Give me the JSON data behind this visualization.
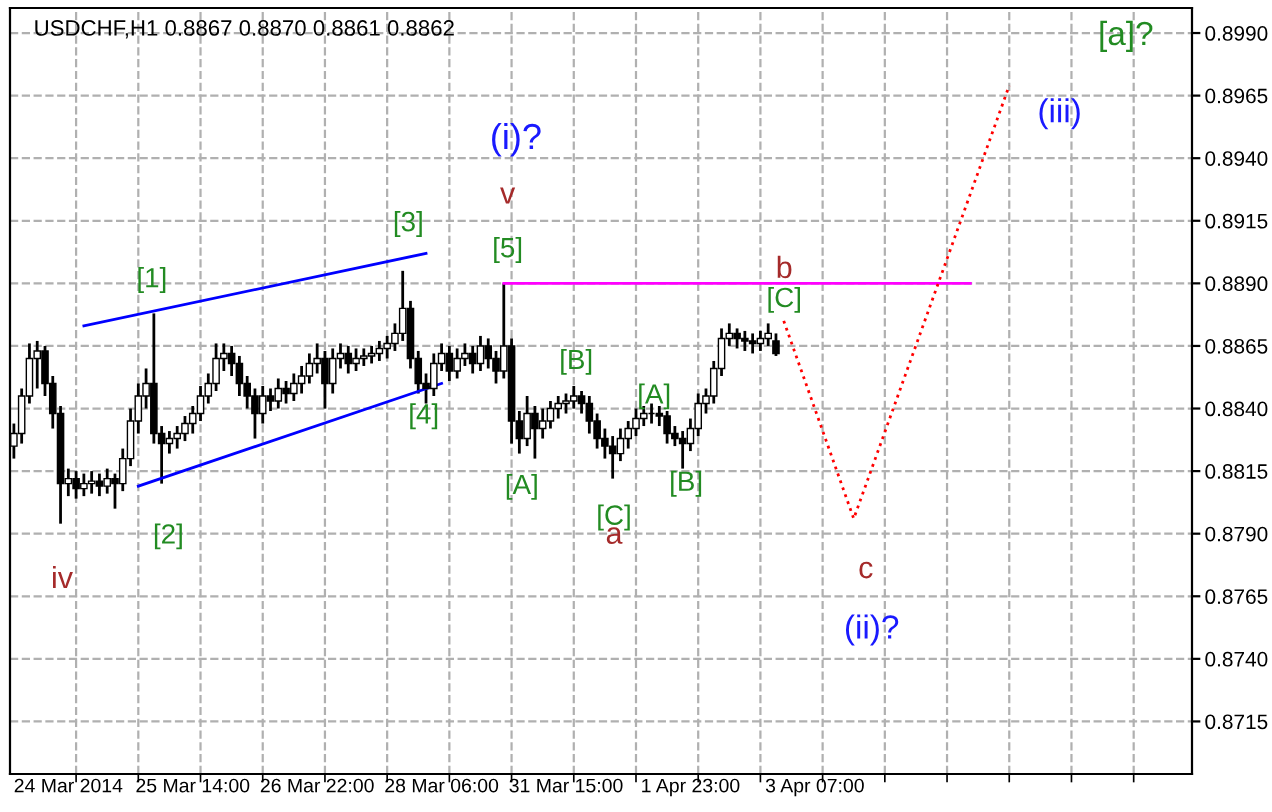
{
  "chart_data": {
    "type": "candlestick",
    "title": "USDCHF,H1 0.8867 0.8870 0.8861 0.8862",
    "color": "#000000",
    "categories": [
      null,
      null,
      null,
      null,
      null,
      null,
      null,
      "24 Mar 2014",
      null,
      null,
      null,
      null,
      null,
      null,
      null,
      null,
      null,
      null,
      null,
      null,
      null,
      null,
      null,
      "25 Mar 14:00",
      null,
      null,
      null,
      null,
      null,
      null,
      null,
      null,
      null,
      null,
      null,
      null,
      null,
      null,
      null,
      "26 Mar 22:00",
      null,
      null,
      null,
      null,
      null,
      null,
      null,
      null,
      null,
      null,
      null,
      null,
      null,
      null,
      null,
      "28 Mar 06:00",
      null,
      null,
      null,
      null,
      null,
      null,
      null,
      null,
      null,
      null,
      null,
      null,
      null,
      null,
      null,
      "31 Mar 15:00",
      null,
      null,
      null,
      null,
      null,
      null,
      null,
      null,
      null,
      null,
      null,
      null,
      null,
      null,
      null,
      "1 Apr 23:00",
      null,
      null,
      null,
      null,
      null,
      null,
      null,
      null,
      null,
      null,
      null,
      null,
      null,
      null,
      null,
      "3 Apr 07:00",
      null,
      null,
      null,
      null,
      null,
      null,
      null,
      null,
      null,
      null,
      null,
      null,
      null,
      null,
      null,
      null,
      null,
      null,
      null,
      null,
      null,
      null,
      null,
      null,
      null,
      null,
      null,
      null,
      null,
      null,
      null,
      null,
      null,
      null,
      null,
      null,
      null,
      null,
      null,
      null,
      null,
      null,
      null,
      null,
      null,
      null,
      null,
      null
    ],
    "ohlc": [
      [
        0.8825,
        0.8834,
        0.882,
        0.883
      ],
      [
        0.883,
        0.8848,
        0.8826,
        0.8845
      ],
      [
        0.8845,
        0.8866,
        0.8842,
        0.886
      ],
      [
        0.886,
        0.8867,
        0.8848,
        0.8863
      ],
      [
        0.8863,
        0.8865,
        0.8845,
        0.885
      ],
      [
        0.885,
        0.8853,
        0.8832,
        0.8838
      ],
      [
        0.8838,
        0.8841,
        0.8794,
        0.881
      ],
      [
        0.881,
        0.8816,
        0.8805,
        0.8812
      ],
      [
        0.8812,
        0.8815,
        0.8804,
        0.8808
      ],
      [
        0.8808,
        0.8814,
        0.8805,
        0.881
      ],
      [
        0.881,
        0.8815,
        0.8806,
        0.8811
      ],
      [
        0.8811,
        0.8814,
        0.8805,
        0.8809
      ],
      [
        0.8809,
        0.8816,
        0.8806,
        0.8812
      ],
      [
        0.8812,
        0.8814,
        0.88,
        0.881
      ],
      [
        0.881,
        0.8824,
        0.8807,
        0.882
      ],
      [
        0.882,
        0.884,
        0.8817,
        0.8835
      ],
      [
        0.8835,
        0.885,
        0.883,
        0.8845
      ],
      [
        0.8845,
        0.8856,
        0.884,
        0.885
      ],
      [
        0.885,
        0.8878,
        0.8826,
        0.883
      ],
      [
        0.883,
        0.8833,
        0.881,
        0.8826
      ],
      [
        0.8826,
        0.8831,
        0.8822,
        0.8828
      ],
      [
        0.8828,
        0.8833,
        0.8824,
        0.883
      ],
      [
        0.883,
        0.8837,
        0.8827,
        0.8834
      ],
      [
        0.8834,
        0.8841,
        0.883,
        0.8838
      ],
      [
        0.8838,
        0.8849,
        0.8835,
        0.8845
      ],
      [
        0.8845,
        0.8854,
        0.8842,
        0.885
      ],
      [
        0.885,
        0.8866,
        0.8847,
        0.886
      ],
      [
        0.886,
        0.8866,
        0.8855,
        0.8862
      ],
      [
        0.8862,
        0.8865,
        0.8853,
        0.8858
      ],
      [
        0.8858,
        0.8861,
        0.8845,
        0.885
      ],
      [
        0.885,
        0.8853,
        0.884,
        0.8845
      ],
      [
        0.8845,
        0.8848,
        0.8828,
        0.8838
      ],
      [
        0.8838,
        0.8849,
        0.8834,
        0.8845
      ],
      [
        0.8845,
        0.8848,
        0.8839,
        0.8843
      ],
      [
        0.8843,
        0.8852,
        0.884,
        0.8848
      ],
      [
        0.8848,
        0.8851,
        0.8842,
        0.8846
      ],
      [
        0.8846,
        0.8854,
        0.8843,
        0.885
      ],
      [
        0.885,
        0.8857,
        0.8846,
        0.8853
      ],
      [
        0.8853,
        0.8862,
        0.885,
        0.8858
      ],
      [
        0.8858,
        0.8866,
        0.8854,
        0.886
      ],
      [
        0.886,
        0.8863,
        0.884,
        0.885
      ],
      [
        0.885,
        0.8864,
        0.8846,
        0.886
      ],
      [
        0.886,
        0.8866,
        0.8856,
        0.8862
      ],
      [
        0.8862,
        0.8865,
        0.8854,
        0.8858
      ],
      [
        0.8858,
        0.8864,
        0.8855,
        0.886
      ],
      [
        0.886,
        0.8864,
        0.8857,
        0.8861
      ],
      [
        0.8861,
        0.8865,
        0.8858,
        0.8862
      ],
      [
        0.8862,
        0.8867,
        0.8859,
        0.8864
      ],
      [
        0.8864,
        0.8869,
        0.886,
        0.8866
      ],
      [
        0.8866,
        0.8874,
        0.8863,
        0.887
      ],
      [
        0.887,
        0.8895,
        0.8867,
        0.888
      ],
      [
        0.888,
        0.8883,
        0.8856,
        0.886
      ],
      [
        0.886,
        0.8863,
        0.8846,
        0.885
      ],
      [
        0.885,
        0.8854,
        0.8842,
        0.8848
      ],
      [
        0.8848,
        0.8862,
        0.8845,
        0.8858
      ],
      [
        0.8858,
        0.8866,
        0.8855,
        0.8862
      ],
      [
        0.8862,
        0.8865,
        0.8851,
        0.8855
      ],
      [
        0.8855,
        0.8864,
        0.8852,
        0.886
      ],
      [
        0.886,
        0.8866,
        0.8857,
        0.8862
      ],
      [
        0.8862,
        0.8865,
        0.8854,
        0.8858
      ],
      [
        0.8858,
        0.8869,
        0.8855,
        0.8865
      ],
      [
        0.8865,
        0.8868,
        0.8856,
        0.886
      ],
      [
        0.886,
        0.8863,
        0.885,
        0.8855
      ],
      [
        0.8855,
        0.889,
        0.8852,
        0.8865
      ],
      [
        0.8865,
        0.8868,
        0.8826,
        0.8835
      ],
      [
        0.8835,
        0.8839,
        0.8822,
        0.8828
      ],
      [
        0.8828,
        0.8845,
        0.8825,
        0.8838
      ],
      [
        0.8838,
        0.8841,
        0.882,
        0.8832
      ],
      [
        0.8832,
        0.884,
        0.8828,
        0.8835
      ],
      [
        0.8835,
        0.8843,
        0.8832,
        0.884
      ],
      [
        0.884,
        0.8845,
        0.8836,
        0.8842
      ],
      [
        0.8842,
        0.8846,
        0.8838,
        0.8843
      ],
      [
        0.8843,
        0.8849,
        0.884,
        0.8845
      ],
      [
        0.8845,
        0.8847,
        0.8838,
        0.8842
      ],
      [
        0.8842,
        0.8845,
        0.883,
        0.8835
      ],
      [
        0.8835,
        0.8838,
        0.8824,
        0.8828
      ],
      [
        0.8828,
        0.8832,
        0.882,
        0.8825
      ],
      [
        0.8825,
        0.8829,
        0.8812,
        0.8822
      ],
      [
        0.8822,
        0.8832,
        0.8819,
        0.8828
      ],
      [
        0.8828,
        0.8835,
        0.8824,
        0.8832
      ],
      [
        0.8832,
        0.884,
        0.8829,
        0.8836
      ],
      [
        0.8836,
        0.8841,
        0.8833,
        0.8838
      ],
      [
        0.8838,
        0.8842,
        0.8834,
        0.8838
      ],
      [
        0.8838,
        0.8841,
        0.8833,
        0.8837
      ],
      [
        0.8837,
        0.8839,
        0.8826,
        0.883
      ],
      [
        0.883,
        0.8833,
        0.8825,
        0.8828
      ],
      [
        0.8828,
        0.8831,
        0.8816,
        0.8826
      ],
      [
        0.8826,
        0.8836,
        0.8823,
        0.8832
      ],
      [
        0.8832,
        0.8846,
        0.8829,
        0.8842
      ],
      [
        0.8842,
        0.8848,
        0.8838,
        0.8845
      ],
      [
        0.8845,
        0.8859,
        0.8842,
        0.8856
      ],
      [
        0.8856,
        0.8872,
        0.8853,
        0.8868
      ],
      [
        0.8868,
        0.8874,
        0.8865,
        0.887
      ],
      [
        0.887,
        0.8872,
        0.8864,
        0.8868
      ],
      [
        0.8868,
        0.8871,
        0.8863,
        0.8867
      ],
      [
        0.8867,
        0.887,
        0.8862,
        0.8866
      ],
      [
        0.8866,
        0.8871,
        0.8863,
        0.8868
      ],
      [
        0.8868,
        0.8874,
        0.8865,
        0.887
      ],
      [
        0.8867,
        0.887,
        0.8861,
        0.8862
      ],
      null,
      null,
      null,
      null,
      null,
      null,
      null,
      null,
      null,
      null,
      null,
      null,
      null,
      null,
      null,
      null,
      null,
      null,
      null,
      null,
      null,
      null,
      null,
      null,
      null,
      null,
      null,
      null,
      null,
      null,
      null,
      null,
      null,
      null,
      null,
      null,
      null,
      null,
      null,
      null,
      null,
      null,
      null,
      null,
      null,
      null,
      null,
      null,
      null,
      null,
      null,
      null,
      null
    ],
    "series": [
      {
        "type": "line",
        "color": "#0000ff",
        "line_style": "solid",
        "values": [
          null,
          null,
          null,
          null,
          null,
          null,
          null,
          null,
          null,
          0.8873,
          null,
          null,
          null,
          null,
          null,
          null,
          null,
          null,
          null,
          null,
          null,
          null,
          null,
          null,
          null,
          null,
          null,
          null,
          null,
          null,
          null,
          null,
          null,
          null,
          null,
          null,
          null,
          null,
          null,
          null,
          null,
          null,
          null,
          null,
          null,
          null,
          null,
          null,
          null,
          null,
          null,
          null,
          null,
          0.8902,
          null,
          null,
          null,
          null,
          null,
          null,
          null,
          null,
          null,
          null,
          null,
          null,
          null,
          null,
          null,
          null,
          null,
          null,
          null,
          null,
          null,
          null,
          null,
          null,
          null,
          null,
          null,
          null,
          null,
          null,
          null,
          null,
          null,
          null,
          null,
          null,
          null,
          null,
          null,
          null,
          null,
          null,
          null,
          null,
          null,
          null,
          null,
          null,
          null,
          null,
          null,
          null,
          null,
          null,
          null,
          null,
          null,
          null,
          null,
          null,
          null,
          null,
          null,
          null,
          null,
          null,
          null,
          null,
          null,
          null,
          null,
          null,
          null,
          null,
          null,
          null,
          null,
          null,
          null,
          null,
          null,
          null,
          null,
          null,
          null,
          null,
          null,
          null,
          null,
          null,
          null,
          null,
          null,
          null,
          null,
          null,
          null,
          null
        ]
      },
      {
        "type": "line",
        "color": "#0000ff",
        "line_style": "solid",
        "values": [
          null,
          null,
          null,
          null,
          null,
          null,
          null,
          null,
          null,
          null,
          null,
          null,
          null,
          null,
          null,
          null,
          0.8809,
          null,
          null,
          null,
          null,
          null,
          null,
          null,
          null,
          null,
          null,
          null,
          null,
          null,
          null,
          null,
          null,
          null,
          null,
          null,
          null,
          null,
          null,
          null,
          null,
          null,
          null,
          null,
          null,
          null,
          null,
          null,
          null,
          null,
          null,
          null,
          null,
          null,
          null,
          0.885,
          null,
          null,
          null,
          null,
          null,
          null,
          null,
          null,
          null,
          null,
          null,
          null,
          null,
          null,
          null,
          null,
          null,
          null,
          null,
          null,
          null,
          null,
          null,
          null,
          null,
          null,
          null,
          null,
          null,
          null,
          null,
          null,
          null,
          null,
          null,
          null,
          null,
          null,
          null,
          null,
          null,
          null,
          null,
          null,
          null,
          null,
          null,
          null,
          null,
          null,
          null,
          null,
          null,
          null,
          null,
          null,
          null,
          null,
          null,
          null,
          null,
          null,
          null,
          null,
          null,
          null,
          null,
          null,
          null,
          null,
          null,
          null,
          null,
          null,
          null,
          null,
          null,
          null,
          null,
          null,
          null,
          null,
          null,
          null,
          null,
          null,
          null,
          null,
          null,
          null,
          null,
          null,
          null,
          null,
          null,
          null
        ]
      },
      {
        "type": "line",
        "color": "#ff00ff",
        "line_style": "solid",
        "values": [
          null,
          null,
          null,
          null,
          null,
          null,
          null,
          null,
          null,
          null,
          null,
          null,
          null,
          null,
          null,
          null,
          null,
          null,
          null,
          null,
          null,
          null,
          null,
          null,
          null,
          null,
          null,
          null,
          null,
          null,
          null,
          null,
          null,
          null,
          null,
          null,
          null,
          null,
          null,
          null,
          null,
          null,
          null,
          null,
          null,
          null,
          null,
          null,
          null,
          null,
          null,
          null,
          null,
          null,
          null,
          null,
          null,
          null,
          null,
          null,
          null,
          null,
          null,
          0.889,
          null,
          null,
          null,
          null,
          null,
          null,
          null,
          null,
          null,
          null,
          null,
          null,
          null,
          null,
          null,
          null,
          null,
          null,
          null,
          null,
          null,
          null,
          null,
          null,
          null,
          null,
          null,
          null,
          null,
          null,
          null,
          null,
          null,
          null,
          null,
          null,
          null,
          null,
          null,
          null,
          null,
          null,
          null,
          null,
          null,
          null,
          null,
          null,
          null,
          null,
          null,
          null,
          null,
          null,
          null,
          null,
          null,
          null,
          null,
          0.889,
          null,
          null,
          null,
          null,
          null,
          null,
          null,
          null,
          null,
          null,
          null,
          null,
          null,
          null,
          null,
          null,
          null,
          null,
          null,
          null,
          null,
          null,
          null,
          null,
          null,
          null,
          null,
          null
        ]
      },
      {
        "type": "line",
        "color": "#ff0000",
        "line_style": "dotted",
        "values": [
          null,
          null,
          null,
          null,
          null,
          null,
          null,
          null,
          null,
          null,
          null,
          null,
          null,
          null,
          null,
          null,
          null,
          null,
          null,
          null,
          null,
          null,
          null,
          null,
          null,
          null,
          null,
          null,
          null,
          null,
          null,
          null,
          null,
          null,
          null,
          null,
          null,
          null,
          null,
          null,
          null,
          null,
          null,
          null,
          null,
          null,
          null,
          null,
          null,
          null,
          null,
          null,
          null,
          null,
          null,
          null,
          null,
          null,
          null,
          null,
          null,
          null,
          null,
          null,
          null,
          null,
          null,
          null,
          null,
          null,
          null,
          null,
          null,
          null,
          null,
          null,
          null,
          null,
          null,
          null,
          null,
          null,
          null,
          null,
          null,
          null,
          null,
          null,
          null,
          null,
          null,
          null,
          null,
          null,
          null,
          null,
          null,
          null,
          null,
          0.8875,
          null,
          null,
          null,
          null,
          null,
          null,
          null,
          null,
          0.8796,
          null,
          null,
          null,
          null,
          null,
          null,
          null,
          null,
          null,
          null,
          null,
          null,
          null,
          null,
          null,
          null,
          null,
          null,
          null,
          0.8969,
          null,
          null,
          null,
          null,
          null,
          null,
          null,
          null,
          null,
          null,
          null,
          null,
          null,
          null,
          null,
          null,
          null,
          null,
          null,
          null,
          null,
          null,
          null
        ]
      }
    ],
    "annotations": [
      "[a]?",
      "(iii)",
      "(i)?",
      "v",
      {
        "text": "[5]",
        "y": 0.889
      },
      "[3]",
      {
        "text": "[1]",
        "y": 0.8878
      },
      "[4]",
      {
        "text": "[2]",
        "y": 0.881
      },
      "iv",
      "[B]",
      {
        "text": "[A]",
        "y": 0.8822
      },
      {
        "text": "[C]",
        "y": 0.8812
      },
      "a",
      "[A]",
      "[B]",
      "b",
      "[C]",
      "c",
      "(ii)?"
    ],
    "ylim": [
      0.8694,
      0.9
    ],
    "yticks": [
      {
        "value": 0.8715,
        "label": "0.8715"
      },
      {
        "value": 0.874,
        "label": "0.8740"
      },
      {
        "value": 0.8765,
        "label": "0.8765"
      },
      {
        "value": 0.879,
        "label": "0.8790"
      },
      {
        "value": 0.8815,
        "label": "0.8815"
      },
      {
        "value": 0.884,
        "label": "0.8840"
      },
      {
        "value": 0.8865,
        "label": "0.8865"
      },
      {
        "value": 0.889,
        "label": "0.8890"
      },
      {
        "value": 0.8915,
        "label": "0.8915"
      },
      {
        "value": 0.894,
        "label": "0.8940"
      },
      {
        "value": 0.8965,
        "label": "0.8965"
      },
      {
        "value": 0.899,
        "label": "0.8990"
      }
    ],
    "grid": true
  }
}
